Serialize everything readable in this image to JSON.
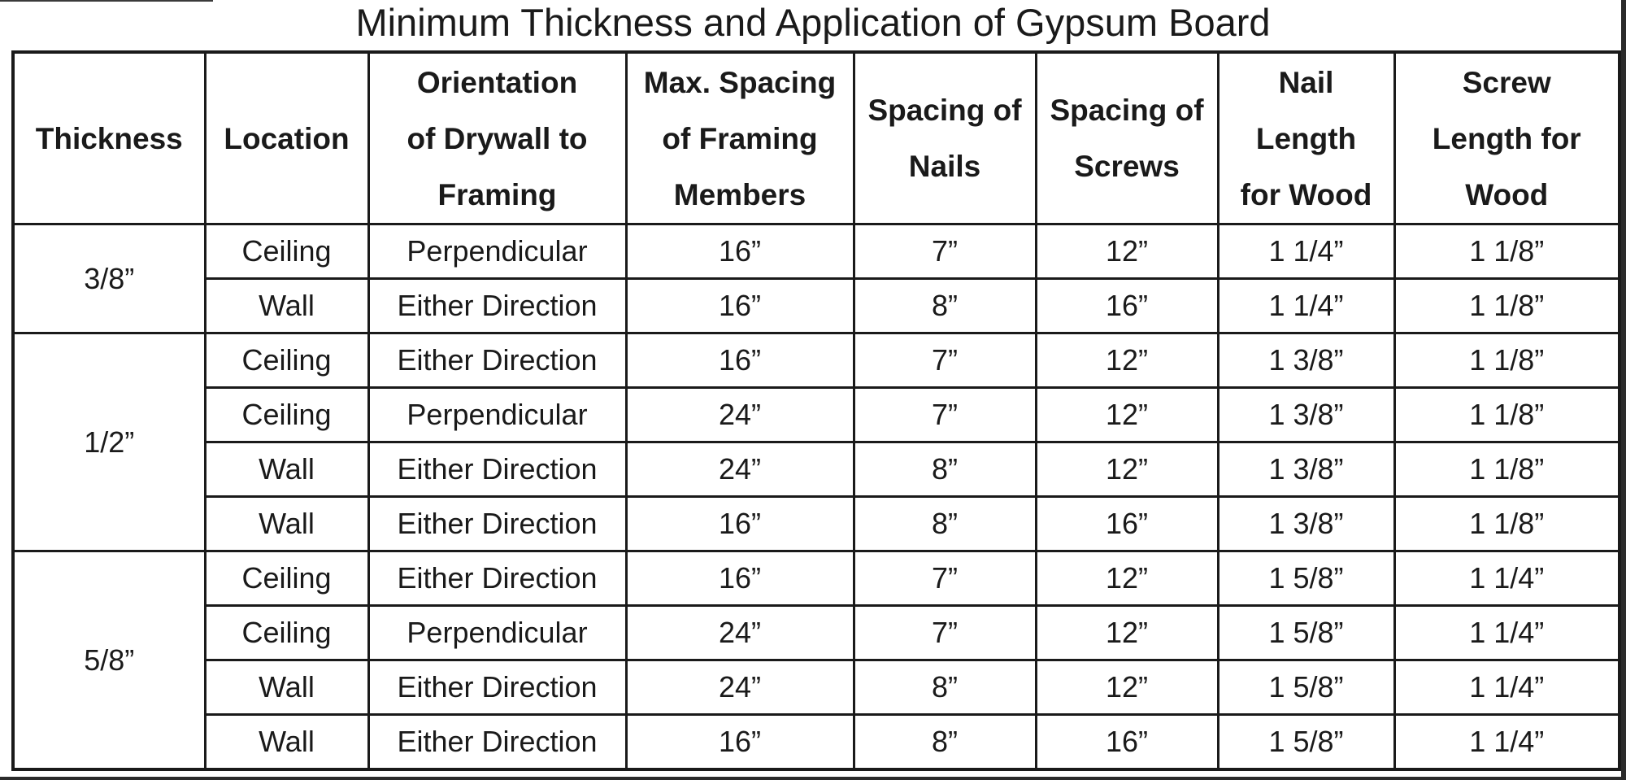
{
  "title": "Minimum Thickness and Application of Gypsum Board",
  "headers": [
    [
      "Thickness"
    ],
    [
      "Location"
    ],
    [
      "Orientation",
      "of Drywall to",
      "Framing"
    ],
    [
      "Max. Spacing",
      "of Framing",
      "Members"
    ],
    [
      "Spacing of",
      "Nails"
    ],
    [
      "Spacing of",
      "Screws"
    ],
    [
      "Nail",
      "Length",
      "for Wood"
    ],
    [
      "Screw",
      "Length for",
      "Wood"
    ]
  ],
  "groups": [
    {
      "thickness": "3/8”",
      "rows": [
        [
          "Ceiling",
          "Perpendicular",
          "16”",
          "7”",
          "12”",
          "1 1/4”",
          "1 1/8”"
        ],
        [
          "Wall",
          "Either Direction",
          "16”",
          "8”",
          "16”",
          "1 1/4”",
          "1 1/8”"
        ]
      ]
    },
    {
      "thickness": "1/2”",
      "rows": [
        [
          "Ceiling",
          "Either Direction",
          "16”",
          "7”",
          "12”",
          "1 3/8”",
          "1 1/8”"
        ],
        [
          "Ceiling",
          "Perpendicular",
          "24”",
          "7”",
          "12”",
          "1 3/8”",
          "1 1/8”"
        ],
        [
          "Wall",
          "Either Direction",
          "24”",
          "8”",
          "12”",
          "1 3/8”",
          "1 1/8”"
        ],
        [
          "Wall",
          "Either Direction",
          "16”",
          "8”",
          "16”",
          "1 3/8”",
          "1 1/8”"
        ]
      ]
    },
    {
      "thickness": "5/8”",
      "rows": [
        [
          "Ceiling",
          "Either Direction",
          "16”",
          "7”",
          "12”",
          "1 5/8”",
          "1 1/4”"
        ],
        [
          "Ceiling",
          "Perpendicular",
          "24”",
          "7”",
          "12”",
          "1 5/8”",
          "1 1/4”"
        ],
        [
          "Wall",
          "Either Direction",
          "24”",
          "8”",
          "12”",
          "1 5/8”",
          "1 1/4”"
        ],
        [
          "Wall",
          "Either Direction",
          "16”",
          "8”",
          "16”",
          "1 5/8”",
          "1 1/4”"
        ]
      ]
    }
  ],
  "colors": {
    "text": "#1a1a1a",
    "border": "#1a1a1a",
    "background": "#ffffff"
  }
}
